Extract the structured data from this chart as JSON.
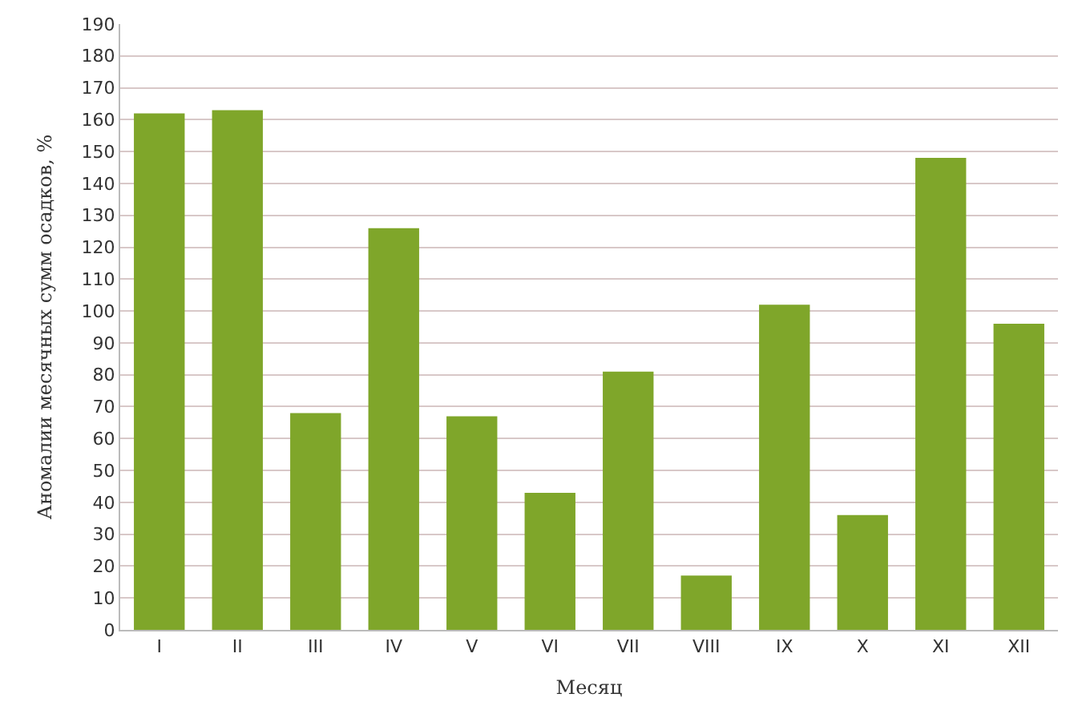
{
  "chart_data": {
    "type": "bar",
    "xlabel": "Месяц",
    "ylabel": "Аномалии месячных сумм осадков, %",
    "categories": [
      "I",
      "II",
      "III",
      "IV",
      "V",
      "VI",
      "VII",
      "VIII",
      "IX",
      "X",
      "XI",
      "XII"
    ],
    "values": [
      162,
      163,
      68,
      126,
      67,
      43,
      81,
      17,
      102,
      36,
      148,
      96
    ],
    "color": "#7fa62a",
    "ylim": [
      0,
      190
    ],
    "yticks": [
      0,
      10,
      20,
      30,
      40,
      50,
      60,
      70,
      80,
      90,
      100,
      110,
      120,
      130,
      140,
      150,
      160,
      170,
      180,
      190
    ],
    "grid": "y",
    "legend": false
  }
}
